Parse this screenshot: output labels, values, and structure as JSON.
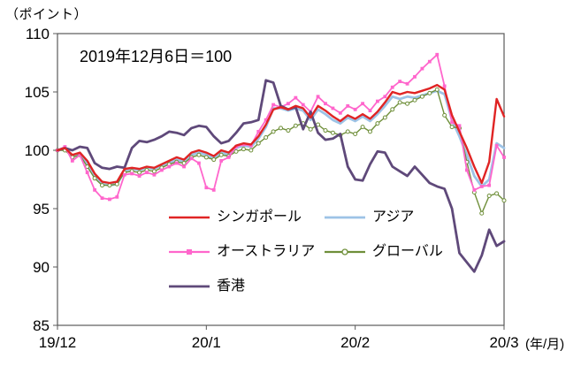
{
  "chart_data": {
    "type": "line",
    "title": "",
    "annotation": "2019年12月6日＝100",
    "ylabel": "（ポイント）",
    "xlabel": "(年/月)",
    "ylim": [
      85,
      110
    ],
    "yticks": [
      85,
      90,
      95,
      100,
      105,
      110
    ],
    "xticklabels": [
      "19/12",
      "20/1",
      "20/2",
      "20/3"
    ],
    "xtick_positions": [
      0,
      20,
      40,
      60
    ],
    "grid": false,
    "legend_position": "inside-bottom-center",
    "axis_color": "#595959",
    "series": [
      {
        "name": "シンガポール",
        "color": "#e02424",
        "marker": "none",
        "width": 2.4,
        "values": [
          100.0,
          100.2,
          99.6,
          99.8,
          99.1,
          98.0,
          97.3,
          97.2,
          97.3,
          98.4,
          98.5,
          98.4,
          98.6,
          98.5,
          98.8,
          99.1,
          99.4,
          99.2,
          99.8,
          100.0,
          99.8,
          99.5,
          100.0,
          99.8,
          100.4,
          100.6,
          100.5,
          101.2,
          102.2,
          103.5,
          103.7,
          103.5,
          103.8,
          103.6,
          102.8,
          103.8,
          103.4,
          102.9,
          102.5,
          103.0,
          102.7,
          103.1,
          102.7,
          103.3,
          104.1,
          105.0,
          104.8,
          105.0,
          104.9,
          105.1,
          105.3,
          105.6,
          105.2,
          103.0,
          101.6,
          100.2,
          98.6,
          97.2,
          99.0,
          104.4,
          102.9
        ]
      },
      {
        "name": "アジア",
        "color": "#9dc3e6",
        "marker": "none",
        "width": 2.8,
        "values": [
          100.0,
          100.1,
          99.5,
          99.7,
          98.9,
          97.8,
          97.1,
          97.0,
          97.1,
          98.2,
          98.4,
          98.3,
          98.5,
          98.4,
          98.7,
          98.9,
          99.2,
          99.0,
          99.6,
          99.8,
          99.6,
          99.3,
          99.8,
          99.6,
          100.2,
          100.4,
          100.3,
          101.0,
          102.0,
          103.6,
          103.6,
          103.4,
          103.6,
          103.4,
          102.6,
          103.5,
          103.1,
          102.6,
          102.3,
          102.8,
          102.5,
          102.9,
          102.5,
          103.1,
          103.8,
          104.6,
          104.4,
          104.6,
          104.5,
          104.7,
          104.9,
          105.1,
          104.8,
          102.6,
          101.2,
          99.6,
          97.8,
          96.9,
          97.5,
          100.6,
          100.2
        ]
      },
      {
        "name": "オーストラリア",
        "color": "#ff66cc",
        "marker": "square",
        "width": 1.8,
        "values": [
          100.0,
          100.3,
          99.1,
          99.6,
          98.1,
          96.6,
          95.9,
          95.8,
          96.0,
          97.9,
          98.0,
          97.8,
          98.1,
          97.9,
          98.3,
          98.6,
          98.9,
          98.6,
          99.3,
          98.9,
          96.8,
          96.6,
          99.1,
          99.4,
          100.3,
          100.5,
          100.4,
          101.6,
          102.6,
          103.9,
          103.7,
          104.0,
          104.5,
          103.9,
          103.3,
          104.6,
          104.0,
          103.6,
          103.2,
          103.8,
          103.5,
          104.0,
          103.4,
          104.2,
          104.6,
          105.4,
          105.9,
          105.7,
          106.3,
          107.0,
          107.6,
          108.2,
          105.5,
          102.4,
          102.1,
          98.3,
          96.6,
          96.9,
          97.0,
          100.4,
          99.4
        ]
      },
      {
        "name": "グローバル",
        "color": "#6f8f3a",
        "marker": "circle",
        "width": 1.4,
        "values": [
          100.0,
          100.0,
          99.4,
          99.6,
          98.6,
          97.6,
          97.0,
          97.0,
          97.1,
          98.1,
          98.2,
          98.1,
          98.3,
          98.2,
          98.5,
          98.8,
          99.0,
          98.9,
          99.4,
          99.6,
          99.4,
          99.2,
          99.6,
          99.5,
          99.9,
          100.1,
          100.0,
          100.6,
          101.1,
          101.6,
          101.9,
          101.7,
          102.1,
          102.3,
          101.8,
          102.2,
          101.7,
          101.5,
          101.3,
          101.6,
          101.4,
          102.0,
          101.6,
          102.3,
          102.8,
          103.5,
          104.1,
          104.0,
          104.3,
          104.6,
          104.9,
          105.2,
          103.0,
          102.0,
          101.9,
          99.0,
          96.4,
          94.6,
          96.1,
          96.3,
          95.7
        ]
      },
      {
        "name": "香港",
        "color": "#5f497a",
        "marker": "none",
        "width": 2.8,
        "values": [
          100.0,
          100.2,
          100.0,
          100.3,
          100.2,
          98.9,
          98.5,
          98.4,
          98.6,
          98.5,
          100.2,
          100.8,
          100.7,
          100.9,
          101.2,
          101.6,
          101.5,
          101.3,
          101.9,
          102.1,
          102.0,
          101.2,
          100.6,
          100.8,
          101.5,
          102.3,
          102.4,
          102.6,
          106.0,
          105.8,
          103.8,
          103.5,
          103.7,
          101.8,
          103.3,
          101.5,
          100.9,
          101.0,
          101.4,
          98.6,
          97.5,
          97.4,
          98.8,
          99.9,
          99.8,
          98.6,
          98.2,
          97.8,
          98.6,
          97.9,
          97.2,
          96.9,
          96.7,
          95.0,
          91.2,
          90.4,
          89.6,
          91.0,
          93.2,
          91.8,
          92.2
        ]
      }
    ]
  }
}
